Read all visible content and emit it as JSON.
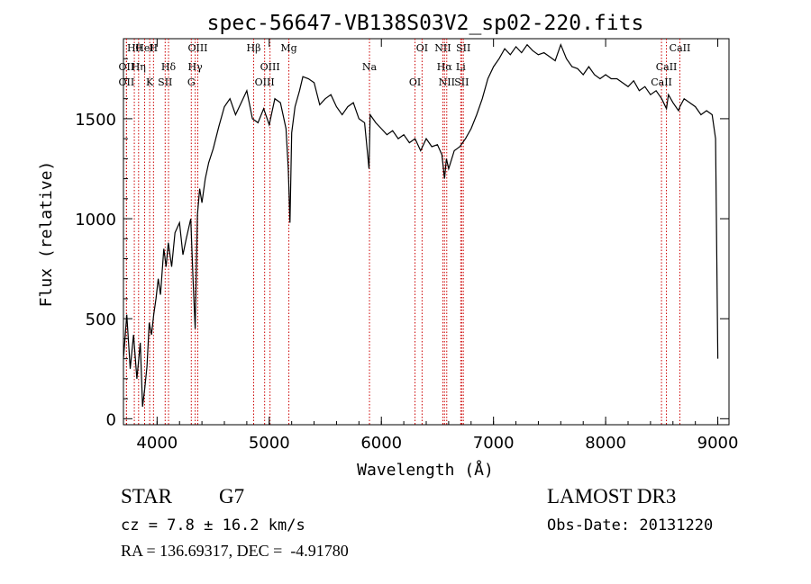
{
  "chart_data": {
    "type": "line",
    "title": "spec-56647-VB138S03V2_sp02-220.fits",
    "xlabel": "Wavelength (Å)",
    "ylabel": "Flux (relative)",
    "xlim": [
      3700,
      9100
    ],
    "ylim": [
      -30,
      1900
    ],
    "xticks": [
      4000,
      5000,
      6000,
      7000,
      8000,
      9000
    ],
    "yticks": [
      0,
      500,
      1000,
      1500
    ],
    "grid": false,
    "line_color": "#000000",
    "marker_color": "#cc0000",
    "series": [
      {
        "x": [
          3700,
          3730,
          3760,
          3790,
          3820,
          3850,
          3870,
          3890,
          3910,
          3930,
          3950,
          3970,
          3990,
          4010,
          4030,
          4060,
          4080,
          4100,
          4130,
          4160,
          4200,
          4230,
          4260,
          4300,
          4320,
          4340,
          4360,
          4380,
          4400,
          4430,
          4460,
          4500,
          4550,
          4600,
          4650,
          4700,
          4750,
          4800,
          4850,
          4900,
          4950,
          5000,
          5050,
          5100,
          5150,
          5170,
          5185,
          5200,
          5230,
          5270,
          5300,
          5350,
          5400,
          5450,
          5500,
          5550,
          5600,
          5650,
          5700,
          5750,
          5800,
          5850,
          5890,
          5900,
          5950,
          6000,
          6050,
          6100,
          6150,
          6200,
          6250,
          6300,
          6350,
          6400,
          6450,
          6500,
          6540,
          6563,
          6580,
          6600,
          6650,
          6700,
          6750,
          6800,
          6850,
          6900,
          6950,
          7000,
          7050,
          7100,
          7150,
          7200,
          7250,
          7300,
          7350,
          7400,
          7450,
          7500,
          7550,
          7600,
          7650,
          7700,
          7750,
          7800,
          7850,
          7900,
          7950,
          8000,
          8050,
          8100,
          8150,
          8200,
          8250,
          8300,
          8350,
          8400,
          8450,
          8500,
          8542,
          8560,
          8600,
          8650,
          8662,
          8700,
          8750,
          8800,
          8850,
          8900,
          8950,
          8980,
          9000
        ],
        "y": [
          300,
          520,
          250,
          420,
          200,
          380,
          60,
          150,
          260,
          480,
          420,
          520,
          600,
          700,
          620,
          850,
          760,
          880,
          760,
          930,
          980,
          820,
          900,
          1000,
          700,
          450,
          1020,
          1150,
          1080,
          1200,
          1280,
          1350,
          1460,
          1560,
          1600,
          1520,
          1580,
          1640,
          1500,
          1480,
          1550,
          1470,
          1600,
          1580,
          1450,
          1250,
          980,
          1430,
          1560,
          1640,
          1710,
          1700,
          1680,
          1570,
          1600,
          1620,
          1560,
          1520,
          1560,
          1580,
          1500,
          1480,
          1250,
          1520,
          1480,
          1450,
          1420,
          1440,
          1400,
          1420,
          1380,
          1400,
          1340,
          1400,
          1360,
          1370,
          1320,
          1200,
          1300,
          1250,
          1340,
          1360,
          1400,
          1450,
          1520,
          1600,
          1700,
          1760,
          1800,
          1850,
          1820,
          1860,
          1830,
          1870,
          1840,
          1820,
          1830,
          1810,
          1790,
          1870,
          1800,
          1760,
          1750,
          1720,
          1760,
          1720,
          1700,
          1720,
          1700,
          1700,
          1680,
          1660,
          1690,
          1640,
          1660,
          1620,
          1640,
          1600,
          1550,
          1620,
          1580,
          1540,
          1560,
          1600,
          1580,
          1560,
          1520,
          1540,
          1520,
          1400,
          300
        ]
      }
    ],
    "lines": [
      {
        "label": "Hθ",
        "x": 3797
      },
      {
        "label": "OII",
        "x": 3727
      },
      {
        "label": "OII",
        "x": 3727
      },
      {
        "label": "HeI",
        "x": 3889
      },
      {
        "label": "Hη",
        "x": 3835
      },
      {
        "label": "K",
        "x": 3934
      },
      {
        "label": "H",
        "x": 3968
      },
      {
        "label": "Hδ",
        "x": 4102
      },
      {
        "label": "SII",
        "x": 4072
      },
      {
        "label": "OIII",
        "x": 4363
      },
      {
        "label": "Hγ",
        "x": 4340
      },
      {
        "label": "G",
        "x": 4305
      },
      {
        "label": "Hβ",
        "x": 4861
      },
      {
        "label": "OIII",
        "x": 5007
      },
      {
        "label": "OIII",
        "x": 4959
      },
      {
        "label": "Mg",
        "x": 5175
      },
      {
        "label": "Na",
        "x": 5894
      },
      {
        "label": "OI",
        "x": 6300
      },
      {
        "label": "OI",
        "x": 6363
      },
      {
        "label": "Hα",
        "x": 6563
      },
      {
        "label": "SII",
        "x": 6716
      },
      {
        "label": "NII",
        "x": 6548
      },
      {
        "label": "Li",
        "x": 6708
      },
      {
        "label": "NII",
        "x": 6583
      },
      {
        "label": "SII",
        "x": 6731
      },
      {
        "label": "CaII",
        "x": 8542
      },
      {
        "label": "CaII",
        "x": 8498
      },
      {
        "label": "CaII",
        "x": 8662
      }
    ],
    "label_colors": {
      "marker": "#cc0000"
    }
  },
  "info": {
    "obj_class": "STAR",
    "subclass": "G7",
    "survey": "LAMOST DR3",
    "cz": "cz = 7.8 ± 16.2 km/s",
    "obs_date": "Obs-Date: 20131220",
    "radec": "RA = 136.69317, DEC =  -4.91780"
  }
}
